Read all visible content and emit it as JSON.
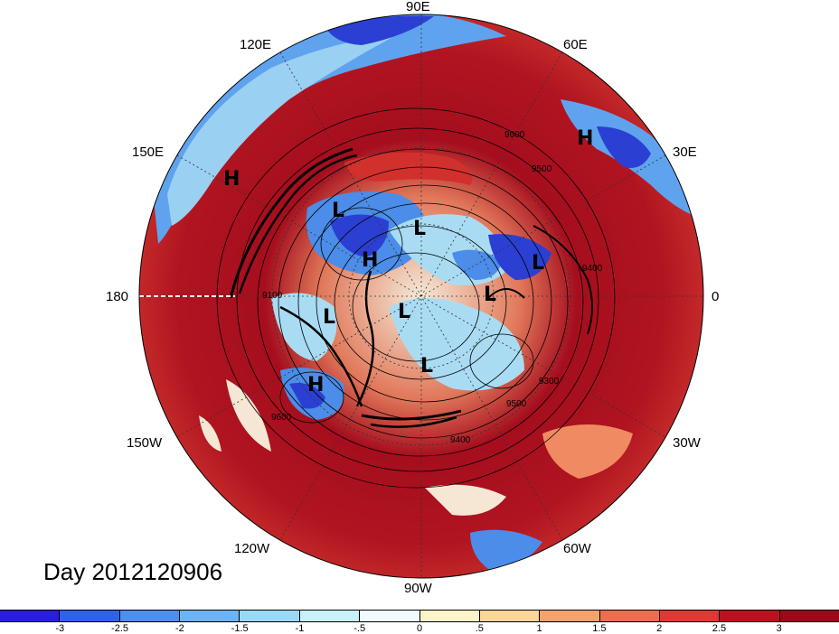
{
  "title": "Day 2012120906",
  "longitude_labels": {
    "top": "90E",
    "upper_left": "120E",
    "upper_right": "60E",
    "left_upper": "150E",
    "right_upper": "30E",
    "left": "180",
    "right": "0",
    "left_lower": "150W",
    "right_lower": "30W",
    "lower_left": "120W",
    "lower_right": "60W",
    "bottom": "90W"
  },
  "pressure_centers": [
    {
      "label": "H",
      "name": "high-center-eurasia"
    },
    {
      "label": "H",
      "name": "high-center-pacific"
    },
    {
      "label": "L",
      "name": "low-center-siberia"
    },
    {
      "label": "L",
      "name": "low-center-arctic-east"
    },
    {
      "label": "H",
      "name": "high-center-arctic"
    },
    {
      "label": "L",
      "name": "low-center-scandinavia"
    },
    {
      "label": "L",
      "name": "low-center-greenland-sea"
    },
    {
      "label": "L",
      "name": "low-center-beaufort"
    },
    {
      "label": "L",
      "name": "low-center-pole"
    },
    {
      "label": "L",
      "name": "low-center-hudson"
    },
    {
      "label": "H",
      "name": "high-center-alaska"
    }
  ],
  "contour_labels": [
    "9600",
    "9500",
    "9400",
    "9100",
    "9300",
    "9500",
    "9400",
    "9600"
  ],
  "colorbar": {
    "ticks": [
      "-3",
      "-2.5",
      "-2",
      "-1.5",
      "-1",
      "-.5",
      "0",
      ".5",
      "1",
      "1.5",
      "2",
      "2.5",
      "3"
    ],
    "colors": [
      "#2a1fd8",
      "#2f62e8",
      "#4d8ef0",
      "#6cb3f5",
      "#9ad8f7",
      "#c8f0fb",
      "#f0fbff",
      "#fdf3c8",
      "#fbd59a",
      "#f4a36c",
      "#ec6e50",
      "#dc3a34",
      "#b8111f",
      "#9a0a1a"
    ]
  },
  "colors": {
    "deep_red": "#a50e1e",
    "red": "#d2302c",
    "light_red": "#f08a62",
    "pale": "#f6e7d4",
    "light_blue": "#a9dcf3",
    "blue": "#4b8de8",
    "deep_blue": "#2b3fd3"
  }
}
